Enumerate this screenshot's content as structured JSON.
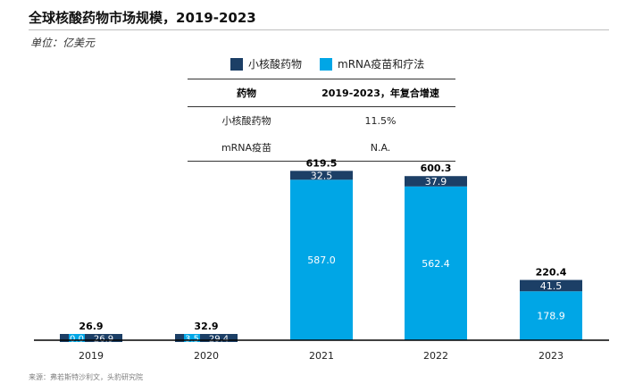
{
  "header": {
    "title": "全球核酸药物市场规模，2019-2023",
    "unit": "单位：亿美元"
  },
  "legend": [
    {
      "label": "小核酸药物",
      "color": "#1c3f66"
    },
    {
      "label": "mRNA疫苗和疗法",
      "color": "#00a6e6"
    }
  ],
  "cagr_table": {
    "headers": [
      "药物",
      "2019-2023，年复合增速"
    ],
    "rows": [
      [
        "小核酸药物",
        "11.5%"
      ],
      [
        "mRNA疫苗",
        "N.A."
      ]
    ]
  },
  "chart_data": {
    "type": "bar",
    "stacked": true,
    "categories": [
      "2019",
      "2020",
      "2021",
      "2022",
      "2023"
    ],
    "series": [
      {
        "name": "mRNA疫苗和疗法",
        "values": [
          0.0,
          3.5,
          587.0,
          562.4,
          178.9
        ],
        "color": "#00a6e6"
      },
      {
        "name": "小核酸药物",
        "values": [
          26.9,
          29.4,
          32.5,
          37.9,
          41.5
        ],
        "color": "#1c3f66"
      }
    ],
    "totals": [
      26.9,
      32.9,
      619.5,
      600.3,
      220.4
    ],
    "ylim": [
      0,
      650
    ]
  },
  "footer": {
    "source": "来源：弗若斯特沙利文，头豹研究院"
  }
}
